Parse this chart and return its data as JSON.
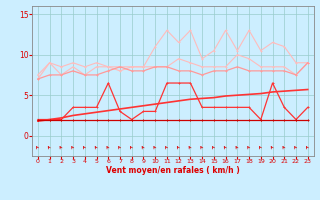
{
  "x": [
    0,
    1,
    2,
    3,
    4,
    5,
    6,
    7,
    8,
    9,
    10,
    11,
    12,
    13,
    14,
    15,
    16,
    17,
    18,
    19,
    20,
    21,
    22,
    23
  ],
  "series": [
    {
      "name": "rafales_peak",
      "color": "#ffbbbb",
      "linewidth": 0.8,
      "markersize": 2.0,
      "y": [
        7.0,
        9.0,
        8.5,
        9.0,
        8.5,
        9.0,
        8.5,
        8.5,
        8.5,
        8.5,
        11.0,
        13.0,
        11.5,
        13.0,
        9.5,
        10.5,
        13.0,
        10.5,
        13.0,
        10.5,
        11.5,
        11.0,
        9.0,
        9.0
      ]
    },
    {
      "name": "vent_moyen_peak",
      "color": "#ffbbbb",
      "linewidth": 0.8,
      "markersize": 2.0,
      "y": [
        7.5,
        9.0,
        7.5,
        8.5,
        7.5,
        8.5,
        8.5,
        8.0,
        8.5,
        8.5,
        8.5,
        8.5,
        9.5,
        9.0,
        8.5,
        8.5,
        8.5,
        10.0,
        9.5,
        8.5,
        8.5,
        8.5,
        7.5,
        9.0
      ]
    },
    {
      "name": "trend_line",
      "color": "#ff9999",
      "linewidth": 0.9,
      "markersize": 2.0,
      "y": [
        7.0,
        7.5,
        7.5,
        8.0,
        7.5,
        7.5,
        8.0,
        8.5,
        8.0,
        8.0,
        8.5,
        8.5,
        8.0,
        8.0,
        7.5,
        8.0,
        8.0,
        8.5,
        8.0,
        8.0,
        8.0,
        8.0,
        7.5,
        9.0
      ]
    },
    {
      "name": "vent_max",
      "color": "#ff3333",
      "linewidth": 0.9,
      "markersize": 2.0,
      "y": [
        2.0,
        2.0,
        2.0,
        3.5,
        3.5,
        3.5,
        6.5,
        3.0,
        2.0,
        3.0,
        3.0,
        6.5,
        6.5,
        6.5,
        3.5,
        3.5,
        3.5,
        3.5,
        3.5,
        2.0,
        6.5,
        3.5,
        2.0,
        3.5
      ]
    },
    {
      "name": "trend_vent",
      "color": "#ff3333",
      "linewidth": 1.2,
      "markersize": 0,
      "y": [
        1.8,
        2.0,
        2.2,
        2.5,
        2.7,
        2.9,
        3.1,
        3.3,
        3.5,
        3.7,
        3.9,
        4.1,
        4.3,
        4.5,
        4.6,
        4.7,
        4.9,
        5.0,
        5.1,
        5.2,
        5.4,
        5.5,
        5.6,
        5.7
      ]
    },
    {
      "name": "vent_min",
      "color": "#cc0000",
      "linewidth": 0.9,
      "markersize": 2.0,
      "y": [
        2.0,
        2.0,
        2.0,
        2.0,
        2.0,
        2.0,
        2.0,
        2.0,
        2.0,
        2.0,
        2.0,
        2.0,
        2.0,
        2.0,
        2.0,
        2.0,
        2.0,
        2.0,
        2.0,
        2.0,
        2.0,
        2.0,
        2.0,
        2.0
      ]
    }
  ],
  "xlim": [
    -0.5,
    23.5
  ],
  "ylim": [
    -2.5,
    16.0
  ],
  "yticks": [
    0,
    5,
    10,
    15
  ],
  "xticks": [
    0,
    1,
    2,
    3,
    4,
    5,
    6,
    7,
    8,
    9,
    10,
    11,
    12,
    13,
    14,
    15,
    16,
    17,
    18,
    19,
    20,
    21,
    22,
    23
  ],
  "xlabel": "Vent moyen/en rafales ( km/h )",
  "background_color": "#cceeff",
  "grid_color": "#99cccc",
  "text_color": "#dd0000",
  "axis_color": "#888888"
}
